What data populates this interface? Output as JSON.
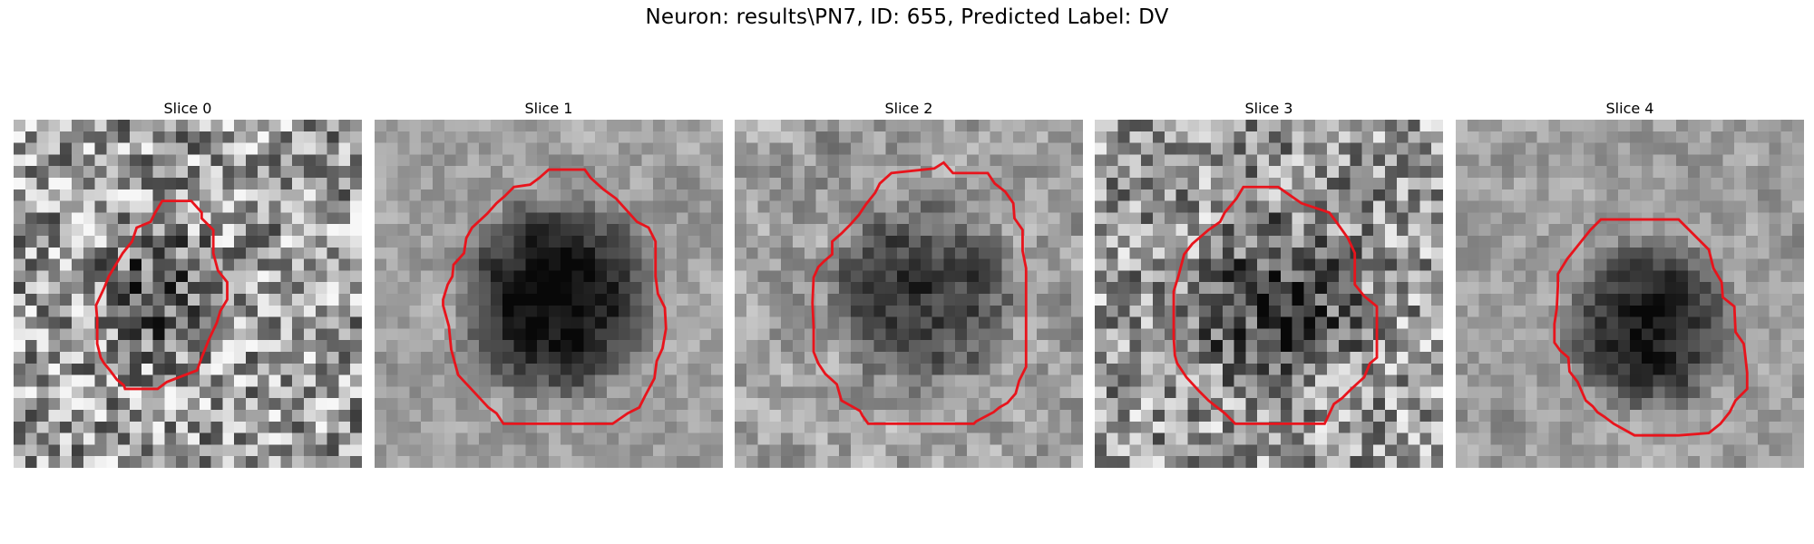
{
  "figure": {
    "title": "Neuron: results\\PN7, ID: 655, Predicted Label: DV"
  },
  "slices": [
    {
      "title": "Slice 0"
    },
    {
      "title": "Slice 1"
    },
    {
      "title": "Slice 2"
    },
    {
      "title": "Slice 3"
    },
    {
      "title": "Slice 4"
    }
  ],
  "colors": {
    "contour": "#e8141c",
    "background": "#ffffff"
  }
}
